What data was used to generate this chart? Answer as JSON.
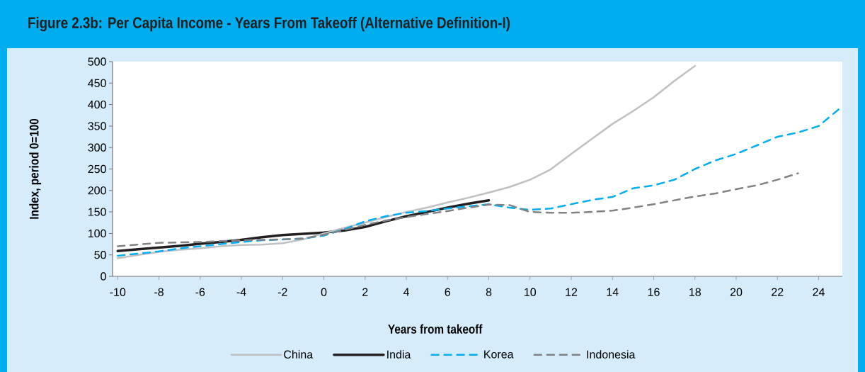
{
  "chart_data": {
    "type": "line",
    "title": "Figure 2.3b:   Per Capita Income - Years From Takeoff (Alternative Definition-I)",
    "xlabel": "Years from takeoff",
    "ylabel": "Index, period 0=100",
    "xlim": [
      -10.25,
      25.15
    ],
    "ylim": [
      0,
      500
    ],
    "xticks": [
      -10,
      -8,
      -6,
      -4,
      -2,
      0,
      2,
      4,
      6,
      8,
      10,
      12,
      14,
      16,
      18,
      20,
      22,
      24
    ],
    "yticks": [
      0,
      50,
      100,
      150,
      200,
      250,
      300,
      350,
      400,
      450,
      500
    ],
    "grid": false,
    "legend": "bottom",
    "marker": "none",
    "series": [
      {
        "name": "China",
        "color": "#bfc0c3",
        "line_style": "solid",
        "x": [
          -10,
          -9,
          -8,
          -7,
          -6,
          -5,
          -4,
          -3,
          -2,
          -1,
          0,
          1,
          2,
          3,
          4,
          5,
          6,
          7,
          8,
          9,
          10,
          11,
          12,
          13,
          14,
          15,
          16,
          17,
          18
        ],
        "values": [
          42,
          50,
          57,
          62,
          65,
          70,
          73,
          74,
          77,
          86,
          100,
          113,
          125,
          138,
          150,
          160,
          172,
          183,
          195,
          208,
          225,
          249,
          285,
          320,
          355,
          385,
          417,
          455,
          490
        ]
      },
      {
        "name": "India",
        "color": "#231f20",
        "line_style": "solid",
        "x": [
          -10,
          -9,
          -8,
          -7,
          -6,
          -5,
          -4,
          -3,
          -2,
          -1,
          0,
          1,
          2,
          3,
          4,
          5,
          6,
          7,
          8
        ],
        "values": [
          59,
          63,
          67,
          71,
          76,
          80,
          85,
          91,
          96,
          99,
          102,
          107,
          115,
          128,
          140,
          150,
          160,
          169,
          177
        ]
      },
      {
        "name": "Korea",
        "color": "#00aeef",
        "line_style": "dashed",
        "x": [
          -10,
          -9,
          -8,
          -7,
          -6,
          -5,
          -4,
          -3,
          -2,
          -1,
          0,
          1,
          2,
          3,
          4,
          5,
          6,
          7,
          8,
          9,
          10,
          11,
          12,
          13,
          14,
          15,
          16,
          17,
          18,
          19,
          20,
          21,
          22,
          23,
          24,
          25
        ],
        "values": [
          48,
          53,
          58,
          65,
          70,
          75,
          80,
          84,
          86,
          88,
          95,
          110,
          128,
          140,
          148,
          152,
          158,
          163,
          168,
          160,
          155,
          158,
          168,
          178,
          185,
          205,
          212,
          225,
          250,
          270,
          285,
          305,
          325,
          335,
          350,
          390
        ]
      },
      {
        "name": "Indonesia",
        "color": "#808285",
        "line_style": "dashed",
        "x": [
          -10,
          -9,
          -8,
          -7,
          -6,
          -5,
          -4,
          -3,
          -2,
          -1,
          0,
          1,
          2,
          3,
          4,
          5,
          6,
          7,
          8,
          9,
          10,
          11,
          12,
          13,
          14,
          15,
          16,
          17,
          18,
          19,
          20,
          21,
          22,
          23
        ],
        "values": [
          70,
          74,
          78,
          79,
          80,
          82,
          84,
          85,
          86,
          88,
          97,
          108,
          120,
          130,
          138,
          145,
          152,
          160,
          167,
          166,
          150,
          148,
          148,
          150,
          153,
          160,
          168,
          177,
          186,
          193,
          203,
          212,
          225,
          240
        ]
      }
    ]
  }
}
